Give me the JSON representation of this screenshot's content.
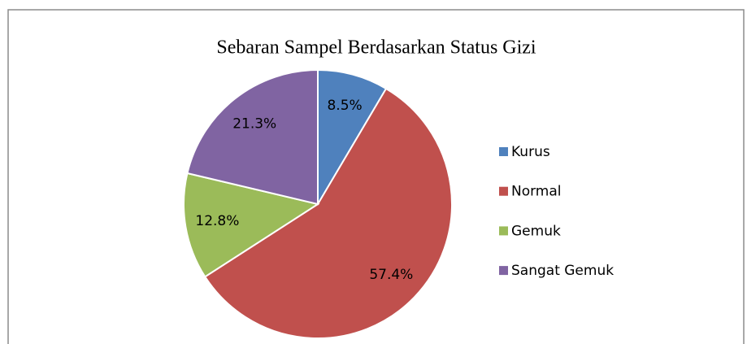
{
  "chart_data": {
    "type": "pie",
    "title": "Sebaran Sampel Berdasarkan Status Gizi",
    "categories": [
      "Kurus",
      "Normal",
      "Gemuk",
      "Sangat Gemuk"
    ],
    "values": [
      8.5,
      57.4,
      12.8,
      21.3
    ],
    "value_labels": [
      "8.5%",
      "57.4%",
      "12.8%",
      "21.3%"
    ],
    "colors": [
      "#4f81bd",
      "#c0504d",
      "#9bbb59",
      "#8064a2"
    ],
    "legend": "right"
  }
}
